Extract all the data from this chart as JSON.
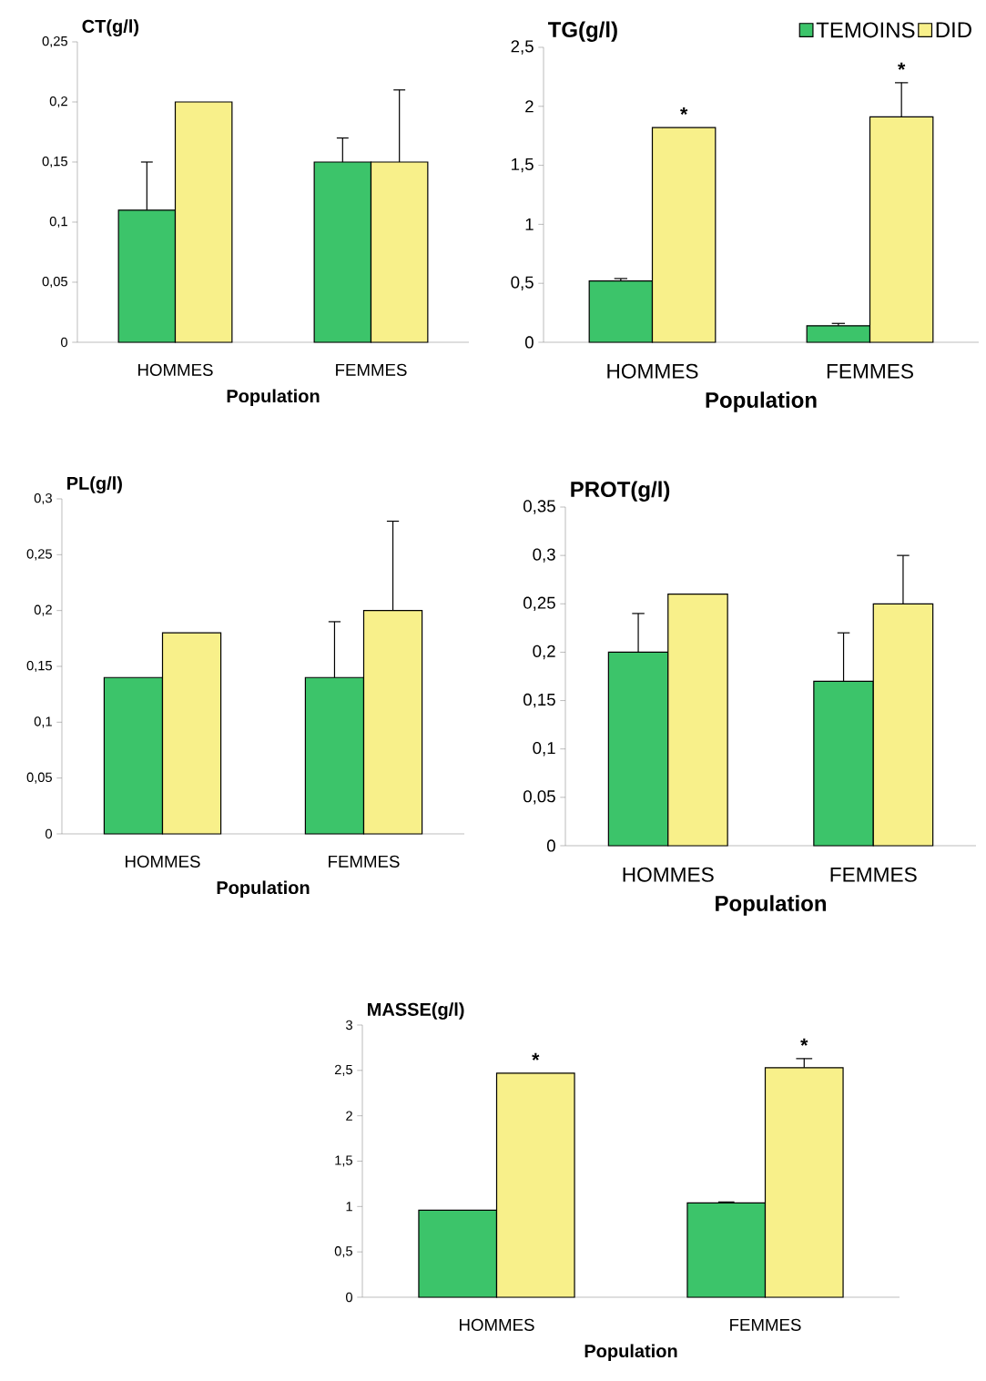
{
  "chart_data": [
    {
      "type": "bar",
      "ylabel": "CT(g/l)",
      "xlabel": "Population",
      "categories": [
        "HOMMES",
        "FEMMES"
      ],
      "series": [
        {
          "color": "#3cc46a",
          "values": [
            0.11,
            0.15
          ],
          "errors": [
            0.04,
            0.02
          ]
        },
        {
          "color": "#f8f08a",
          "values": [
            0.2,
            0.15
          ],
          "errors": [
            null,
            0.06
          ]
        }
      ],
      "ylim": [
        0,
        0.25
      ],
      "yticks": [
        0,
        {
          "value": 0.05,
          "label": "0,05"
        },
        {
          "value": 0.1,
          "label": "0,1"
        },
        {
          "value": 0.15,
          "label": "0,15"
        },
        {
          "value": 0.2,
          "label": "0,2"
        },
        {
          "value": 0.25,
          "label": "0,25"
        }
      ]
    },
    {
      "type": "bar",
      "ylabel": "TG(g/l)",
      "xlabel": "Population",
      "categories": [
        "HOMMES",
        "FEMMES"
      ],
      "series": [
        {
          "name": "TEMOINS",
          "color": "#3cc46a",
          "values": [
            0.52,
            0.14
          ],
          "errors": [
            0.02,
            0.02
          ]
        },
        {
          "name": "DID",
          "color": "#f8f08a",
          "values": [
            1.82,
            1.91
          ],
          "errors": [
            null,
            0.29
          ]
        }
      ],
      "ylim": [
        0,
        2.5
      ],
      "yticks": [
        0,
        {
          "value": 0.5,
          "label": "0,5"
        },
        1,
        {
          "value": 1.5,
          "label": "1,5"
        },
        2,
        {
          "value": 2.5,
          "label": "2,5"
        }
      ],
      "legend": "top right",
      "annotations": [
        {
          "text": "*",
          "x": "HOMMES",
          "y": 1.82
        },
        {
          "text": "*",
          "x": "FEMMES",
          "y": 1.91
        }
      ]
    },
    {
      "type": "bar",
      "ylabel": "PL(g/l)",
      "xlabel": "Population",
      "categories": [
        "HOMMES",
        "FEMMES"
      ],
      "series": [
        {
          "color": "#3cc46a",
          "values": [
            0.14,
            0.14
          ],
          "errors": [
            null,
            0.05
          ]
        },
        {
          "color": "#f8f08a",
          "values": [
            0.18,
            0.2
          ],
          "errors": [
            null,
            0.08
          ]
        }
      ],
      "ylim": [
        0,
        0.3
      ],
      "yticks": [
        0,
        {
          "value": 0.05,
          "label": "0,05"
        },
        {
          "value": 0.1,
          "label": "0,1"
        },
        {
          "value": 0.15,
          "label": "0,15"
        },
        {
          "value": 0.2,
          "label": "0,2"
        },
        {
          "value": 0.25,
          "label": "0,25"
        },
        {
          "value": 0.3,
          "label": "0,3"
        }
      ]
    },
    {
      "type": "bar",
      "ylabel": "PROT(g/l)",
      "xlabel": "Population",
      "categories": [
        "HOMMES",
        "FEMMES"
      ],
      "series": [
        {
          "color": "#3cc46a",
          "values": [
            0.2,
            0.17
          ],
          "errors": [
            0.04,
            0.05
          ]
        },
        {
          "color": "#f8f08a",
          "values": [
            0.26,
            0.25
          ],
          "errors": [
            null,
            0.05
          ]
        }
      ],
      "ylim": [
        0,
        0.35
      ],
      "yticks": [
        0,
        {
          "value": 0.05,
          "label": "0,05"
        },
        {
          "value": 0.1,
          "label": "0,1"
        },
        {
          "value": 0.15,
          "label": "0,15"
        },
        {
          "value": 0.2,
          "label": "0,2"
        },
        {
          "value": 0.25,
          "label": "0,25"
        },
        {
          "value": 0.3,
          "label": "0,3"
        },
        {
          "value": 0.35,
          "label": "0,35"
        }
      ]
    },
    {
      "type": "bar",
      "ylabel": "MASSE(g/l)",
      "xlabel": "Population",
      "categories": [
        "HOMMES",
        "FEMMES"
      ],
      "series": [
        {
          "color": "#3cc46a",
          "values": [
            0.96,
            1.04
          ],
          "errors": [
            null,
            0.01
          ]
        },
        {
          "color": "#f8f08a",
          "values": [
            2.47,
            2.53
          ],
          "errors": [
            null,
            0.1
          ]
        }
      ],
      "ylim": [
        0,
        3
      ],
      "yticks": [
        0,
        {
          "value": 0.5,
          "label": "0,5"
        },
        1,
        {
          "value": 1.5,
          "label": "1,5"
        },
        2,
        {
          "value": 2.5,
          "label": "2,5"
        },
        3
      ],
      "annotations": [
        {
          "text": "*",
          "x": "HOMMES",
          "y": 2.47
        },
        {
          "text": "*",
          "x": "FEMMES",
          "y": 2.53
        }
      ]
    }
  ]
}
